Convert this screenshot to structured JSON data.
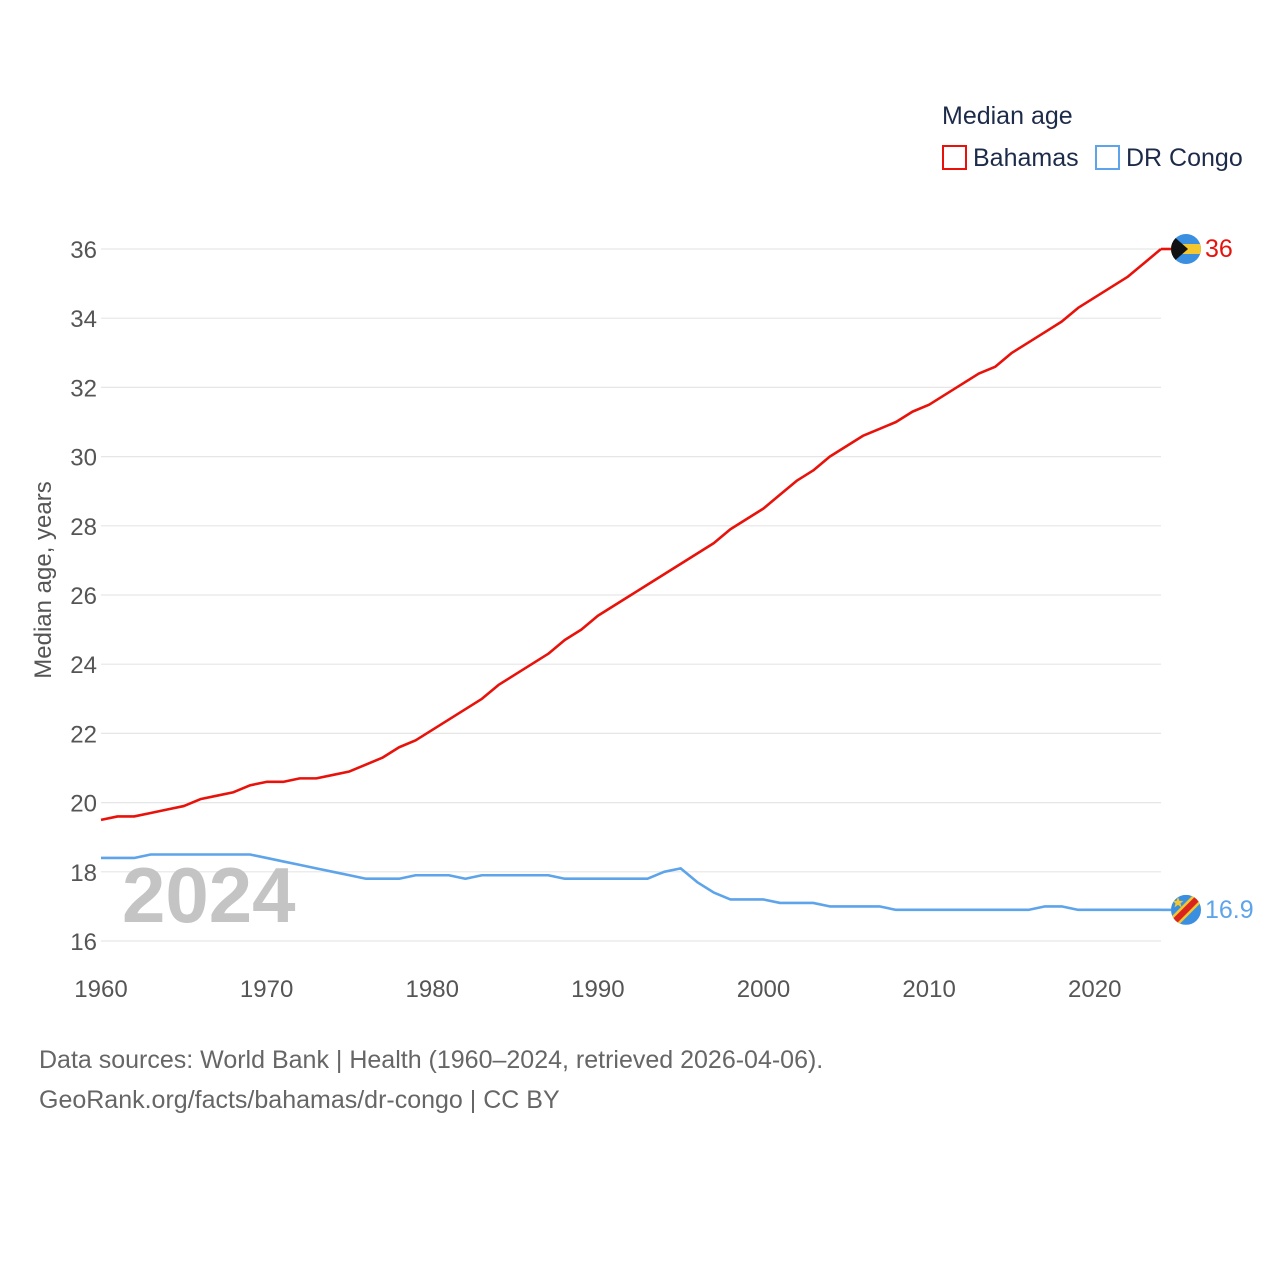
{
  "chart_data": {
    "type": "line",
    "ylabel": "Median age, years",
    "xlim": [
      1960,
      2024
    ],
    "ylim": [
      16,
      36
    ],
    "yticks": [
      16,
      18,
      20,
      22,
      24,
      26,
      28,
      30,
      32,
      34,
      36
    ],
    "xticks": [
      1960,
      1970,
      1980,
      1990,
      2000,
      2010,
      2020
    ],
    "grid": true,
    "legend": {
      "title": "Median age",
      "position": "top-right"
    },
    "watermark_year": "2024",
    "x": [
      1960,
      1961,
      1962,
      1963,
      1964,
      1965,
      1966,
      1967,
      1968,
      1969,
      1970,
      1971,
      1972,
      1973,
      1974,
      1975,
      1976,
      1977,
      1978,
      1979,
      1980,
      1981,
      1982,
      1983,
      1984,
      1985,
      1986,
      1987,
      1988,
      1989,
      1990,
      1991,
      1992,
      1993,
      1994,
      1995,
      1996,
      1997,
      1998,
      1999,
      2000,
      2001,
      2002,
      2003,
      2004,
      2005,
      2006,
      2007,
      2008,
      2009,
      2010,
      2011,
      2012,
      2013,
      2014,
      2015,
      2016,
      2017,
      2018,
      2019,
      2020,
      2021,
      2022,
      2023,
      2024
    ],
    "series": [
      {
        "name": "Bahamas",
        "color": "#e8120b",
        "end_label": "36",
        "flag_icon": "bahamas-flag-icon",
        "values": [
          19.5,
          19.6,
          19.6,
          19.7,
          19.8,
          19.9,
          20.1,
          20.2,
          20.3,
          20.5,
          20.6,
          20.6,
          20.7,
          20.7,
          20.8,
          20.9,
          21.1,
          21.3,
          21.6,
          21.8,
          22.1,
          22.4,
          22.7,
          23.0,
          23.4,
          23.7,
          24.0,
          24.3,
          24.7,
          25.0,
          25.4,
          25.7,
          26.0,
          26.3,
          26.6,
          26.9,
          27.2,
          27.5,
          27.9,
          28.2,
          28.5,
          28.9,
          29.3,
          29.6,
          30.0,
          30.3,
          30.6,
          30.8,
          31.0,
          31.3,
          31.5,
          31.8,
          32.1,
          32.4,
          32.6,
          33.0,
          33.3,
          33.6,
          33.9,
          34.3,
          34.6,
          34.9,
          35.2,
          35.6,
          36.0
        ]
      },
      {
        "name": "DR Congo",
        "color": "#5ea4ea",
        "end_label": "16.9",
        "flag_icon": "dr-congo-flag-icon",
        "values": [
          18.4,
          18.4,
          18.4,
          18.5,
          18.5,
          18.5,
          18.5,
          18.5,
          18.5,
          18.5,
          18.4,
          18.3,
          18.2,
          18.1,
          18.0,
          17.9,
          17.8,
          17.8,
          17.8,
          17.9,
          17.9,
          17.9,
          17.8,
          17.9,
          17.9,
          17.9,
          17.9,
          17.9,
          17.8,
          17.8,
          17.8,
          17.8,
          17.8,
          17.8,
          18.0,
          18.1,
          17.7,
          17.4,
          17.2,
          17.2,
          17.2,
          17.1,
          17.1,
          17.1,
          17.0,
          17.0,
          17.0,
          17.0,
          16.9,
          16.9,
          16.9,
          16.9,
          16.9,
          16.9,
          16.9,
          16.9,
          16.9,
          17.0,
          17.0,
          16.9,
          16.9,
          16.9,
          16.9,
          16.9,
          16.9
        ]
      }
    ]
  },
  "footer": {
    "sources": "Data sources: World Bank | Health (1960–2024, retrieved 2026-04-06).",
    "credit": "GeoRank.org/facts/bahamas/dr-congo | CC BY"
  }
}
